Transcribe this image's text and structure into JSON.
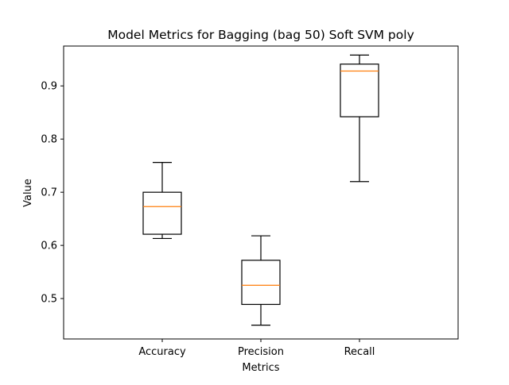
{
  "chart_data": {
    "type": "box",
    "title": "Model Metrics for Bagging (bag 50) Soft SVM poly",
    "xlabel": "Metrics",
    "ylabel": "Value",
    "categories": [
      "Accuracy",
      "Precision",
      "Recall"
    ],
    "boxes": [
      {
        "category": "Accuracy",
        "whisker_low": 0.613,
        "q1": 0.621,
        "median": 0.673,
        "q3": 0.7,
        "whisker_high": 0.756
      },
      {
        "category": "Precision",
        "whisker_low": 0.45,
        "q1": 0.489,
        "median": 0.525,
        "q3": 0.572,
        "whisker_high": 0.618
      },
      {
        "category": "Recall",
        "whisker_low": 0.72,
        "q1": 0.842,
        "median": 0.928,
        "q3": 0.941,
        "whisker_high": 0.958
      }
    ],
    "ylim": [
      0.424,
      0.975
    ],
    "yticks": [
      "0.5",
      "0.6",
      "0.7",
      "0.8",
      "0.9"
    ],
    "grid": false,
    "legend": "none",
    "colors": {
      "box": "#000000",
      "median": "#ff7f0e",
      "background": "#ffffff"
    }
  }
}
